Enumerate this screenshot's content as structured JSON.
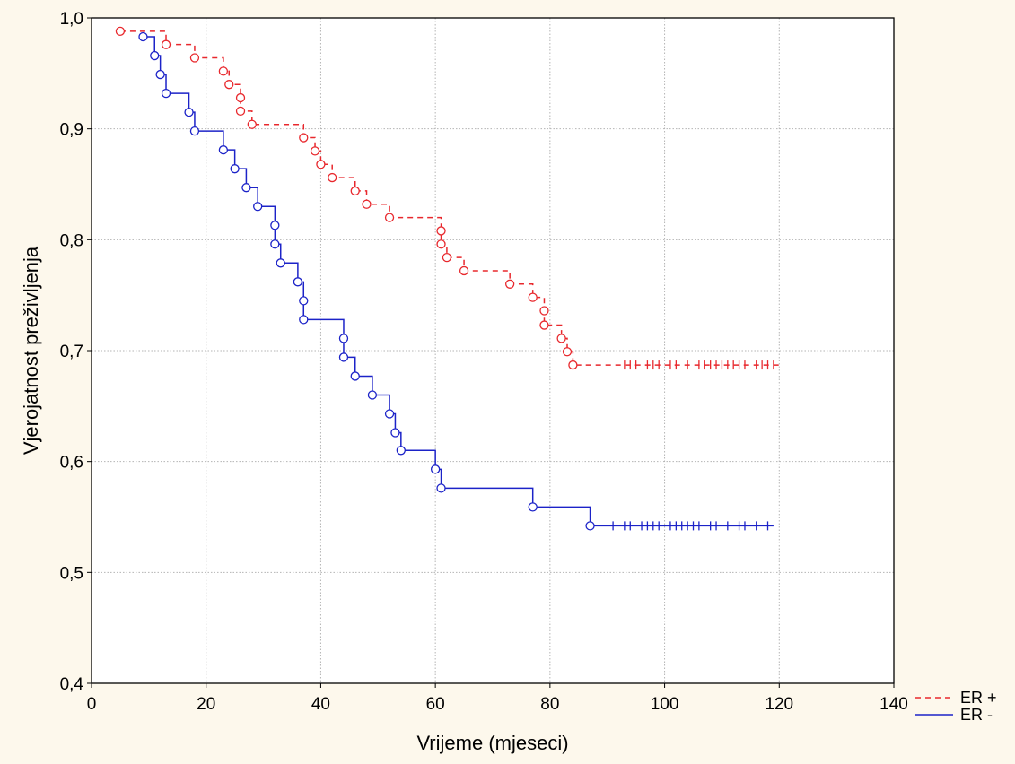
{
  "chart_data": {
    "type": "line",
    "title": "",
    "xlabel": "Vrijeme (mjeseci)",
    "ylabel": "Vjerojatnost preživljenja",
    "xlim": [
      0,
      140
    ],
    "ylim": [
      0.4,
      1.0
    ],
    "x_ticks": [
      0,
      20,
      40,
      60,
      80,
      100,
      120,
      140
    ],
    "x_tick_labels": [
      "0",
      "20",
      "40",
      "60",
      "80",
      "100",
      "120",
      "140"
    ],
    "y_ticks": [
      0.4,
      0.5,
      0.6,
      0.7,
      0.8,
      0.9,
      1.0
    ],
    "y_tick_labels": [
      "0,4",
      "0,5",
      "0,6",
      "0,7",
      "0,8",
      "0,9",
      "1,0"
    ],
    "grid": true,
    "legend_position": "bottom-right",
    "series": [
      {
        "name": "ER +",
        "color": "#e8282d",
        "line_style": "dashed",
        "x_end": 120,
        "steps": [
          [
            5,
            0.988
          ],
          [
            13,
            0.976
          ],
          [
            18,
            0.964
          ],
          [
            23,
            0.952
          ],
          [
            24,
            0.94
          ],
          [
            26,
            0.928
          ],
          [
            26,
            0.916
          ],
          [
            28,
            0.904
          ],
          [
            37,
            0.892
          ],
          [
            39,
            0.88
          ],
          [
            40,
            0.868
          ],
          [
            42,
            0.856
          ],
          [
            46,
            0.844
          ],
          [
            48,
            0.832
          ],
          [
            52,
            0.82
          ],
          [
            61,
            0.808
          ],
          [
            61,
            0.796
          ],
          [
            62,
            0.784
          ],
          [
            65,
            0.772
          ],
          [
            73,
            0.76
          ],
          [
            77,
            0.748
          ],
          [
            79,
            0.736
          ],
          [
            79,
            0.723
          ],
          [
            82,
            0.711
          ],
          [
            83,
            0.699
          ],
          [
            84,
            0.687
          ]
        ],
        "censored": [
          93,
          94,
          95,
          97,
          98,
          99,
          101,
          102,
          104,
          106,
          107,
          108,
          109,
          110,
          111,
          112,
          113,
          114,
          116,
          117,
          118,
          119
        ]
      },
      {
        "name": "ER -",
        "color": "#1c23c8",
        "line_style": "solid",
        "x_end": 119,
        "steps": [
          [
            9,
            0.983
          ],
          [
            11,
            0.966
          ],
          [
            12,
            0.949
          ],
          [
            13,
            0.932
          ],
          [
            17,
            0.915
          ],
          [
            18,
            0.898
          ],
          [
            23,
            0.881
          ],
          [
            25,
            0.864
          ],
          [
            27,
            0.847
          ],
          [
            29,
            0.83
          ],
          [
            32,
            0.813
          ],
          [
            32,
            0.796
          ],
          [
            33,
            0.779
          ],
          [
            36,
            0.762
          ],
          [
            37,
            0.745
          ],
          [
            37,
            0.728
          ],
          [
            44,
            0.711
          ],
          [
            44,
            0.694
          ],
          [
            46,
            0.677
          ],
          [
            49,
            0.66
          ],
          [
            52,
            0.643
          ],
          [
            53,
            0.626
          ],
          [
            54,
            0.61
          ],
          [
            60,
            0.593
          ],
          [
            61,
            0.576
          ],
          [
            77,
            0.559
          ],
          [
            87,
            0.542
          ]
        ],
        "censored": [
          91,
          93,
          94,
          96,
          97,
          98,
          99,
          101,
          102,
          103,
          104,
          105,
          106,
          108,
          109,
          111,
          113,
          114,
          116,
          118
        ]
      }
    ]
  }
}
